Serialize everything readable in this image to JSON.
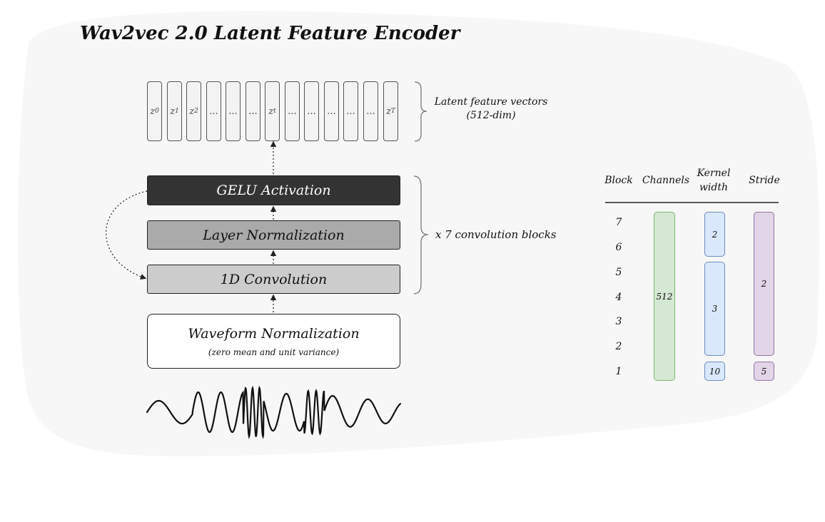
{
  "title": "Wav2vec 2.0 Latent Feature Encoder",
  "latent_vectors": [
    {
      "sym": "z",
      "sub": "0"
    },
    {
      "sym": "z",
      "sub": "1"
    },
    {
      "sym": "z",
      "sub": "2"
    },
    {
      "sym": "...",
      "sub": ""
    },
    {
      "sym": "...",
      "sub": ""
    },
    {
      "sym": "...",
      "sub": ""
    },
    {
      "sym": "z",
      "sub": "t"
    },
    {
      "sym": "...",
      "sub": ""
    },
    {
      "sym": "...",
      "sub": ""
    },
    {
      "sym": "...",
      "sub": ""
    },
    {
      "sym": "...",
      "sub": ""
    },
    {
      "sym": "...",
      "sub": ""
    },
    {
      "sym": "z",
      "sub": "T"
    }
  ],
  "latent_label": {
    "line1": "Latent feature vectors",
    "line2": "(512-dim)"
  },
  "layers": {
    "gelu": "GELU Activation",
    "layer_norm": "Layer Normalization",
    "conv1d": "1D Convolution",
    "waveform_norm": "Waveform Normalization",
    "waveform_norm_sub": "(zero mean and unit variance)"
  },
  "repeat_label": "x 7 convolution blocks",
  "table": {
    "headers": {
      "block": "Block",
      "channels": "Channels",
      "kernel_line1": "Kernel",
      "kernel_line2": "width",
      "stride": "Stride"
    },
    "blocks": [
      "7",
      "6",
      "5",
      "4",
      "3",
      "2",
      "1"
    ],
    "channels": "512",
    "kernel": {
      "blocks_7_6": "2",
      "blocks_5_2": "3",
      "block_1": "10"
    },
    "stride": {
      "blocks_7_2": "2",
      "block_1": "5"
    }
  },
  "colors": {
    "gelu": "#333333",
    "layer_norm": "#aaaaaa",
    "conv1d": "#cccccc",
    "channels": "#d5e8d4",
    "kernel": "#dae8fc",
    "stride": "#e1d5e7"
  }
}
